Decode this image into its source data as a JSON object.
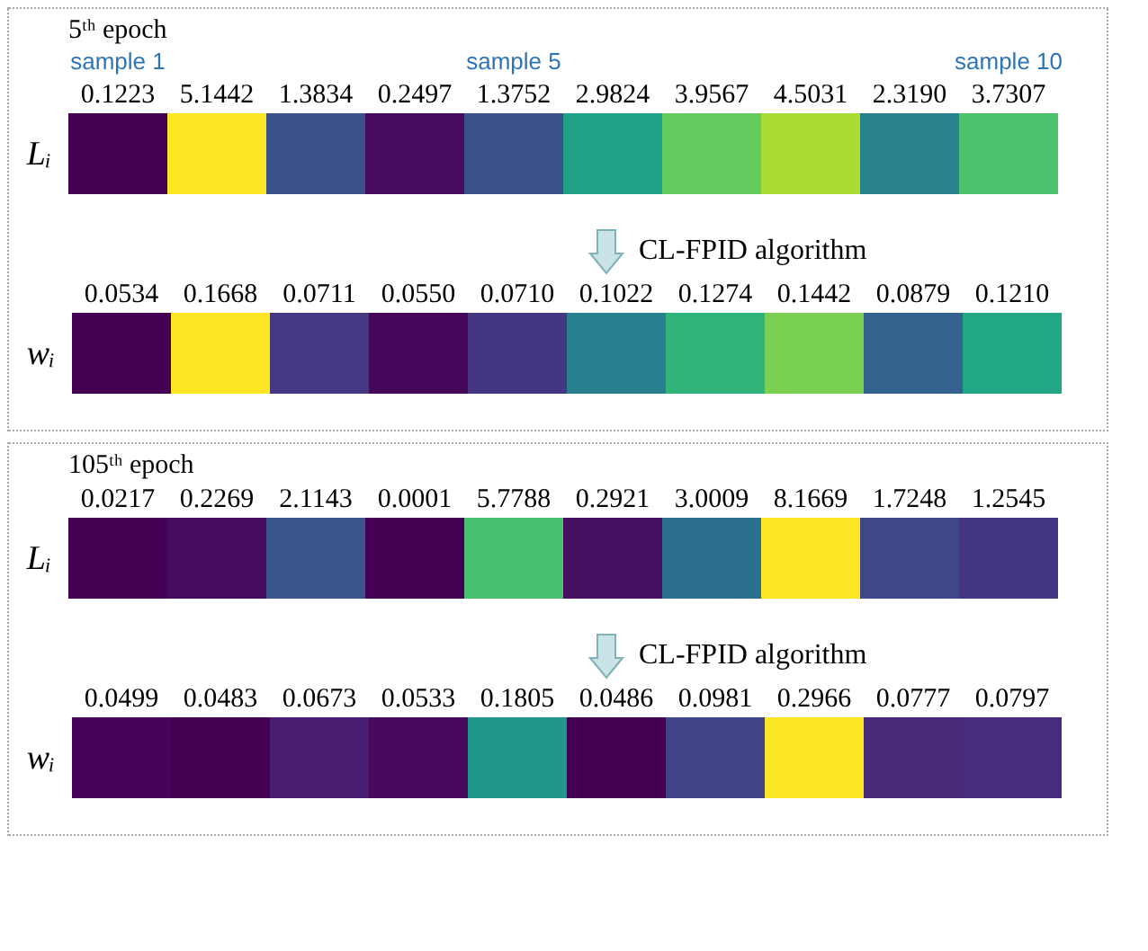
{
  "chart_data": [
    {
      "type": "heatmap",
      "title": "5ᵗʰ epoch",
      "categories": [
        "sample 1",
        null,
        null,
        null,
        "sample 5",
        null,
        null,
        null,
        null,
        "sample 10"
      ],
      "y_categories": [
        "Lᵢ"
      ],
      "cells": [
        [
          0.1223,
          5.1442,
          1.3834,
          0.2497,
          1.3752,
          2.9824,
          3.9567,
          4.5031,
          2.319,
          3.7307
        ]
      ],
      "cell_labels": [
        [
          "0.1223",
          "5.1442",
          "1.3834",
          "0.2497",
          "1.3752",
          "2.9824",
          "3.9567",
          "4.5031",
          "2.3190",
          "3.7307"
        ]
      ]
    },
    {
      "type": "heatmap",
      "annotations": [
        "CL-FPID algorithm"
      ],
      "categories": [
        null,
        null,
        null,
        null,
        null,
        null,
        null,
        null,
        null,
        null
      ],
      "y_categories": [
        "wᵢ"
      ],
      "tick_labels": "y",
      "cells": [
        [
          0.0534,
          0.1668,
          0.0711,
          0.055,
          0.071,
          0.1022,
          0.1274,
          0.1442,
          0.0879,
          0.121
        ]
      ],
      "cell_labels": [
        [
          "0.0534",
          "0.1668",
          "0.0711",
          "0.0550",
          "0.0710",
          "0.1022",
          "0.1274",
          "0.1442",
          "0.0879",
          "0.1210"
        ]
      ]
    },
    {
      "type": "heatmap",
      "title": "105ᵗʰ epoch",
      "categories": [
        null,
        null,
        null,
        null,
        null,
        null,
        null,
        null,
        null,
        null
      ],
      "y_categories": [
        "Lᵢ"
      ],
      "tick_labels": "y",
      "cells": [
        [
          0.0217,
          0.2269,
          2.1143,
          0.0001,
          5.7788,
          0.2921,
          3.0009,
          8.1669,
          1.7248,
          1.2545
        ]
      ],
      "cell_labels": [
        [
          "0.0217",
          "0.2269",
          "2.1143",
          "0.0001",
          "5.7788",
          "0.2921",
          "3.0009",
          "8.1669",
          "1.7248",
          "1.2545"
        ]
      ]
    },
    {
      "type": "heatmap",
      "annotations": [
        "CL-FPID algorithm"
      ],
      "categories": [
        null,
        null,
        null,
        null,
        null,
        null,
        null,
        null,
        null,
        null
      ],
      "y_categories": [
        "wᵢ"
      ],
      "tick_labels": "y",
      "cells": [
        [
          0.0499,
          0.0483,
          0.0673,
          0.0533,
          0.1805,
          0.0486,
          0.0981,
          0.2966,
          0.0777,
          0.0797
        ]
      ],
      "cell_labels": [
        [
          "0.0499",
          "0.0483",
          "0.0673",
          "0.0533",
          "0.1805",
          "0.0486",
          "0.0981",
          "0.2966",
          "0.0777",
          "0.0797"
        ]
      ]
    }
  ]
}
